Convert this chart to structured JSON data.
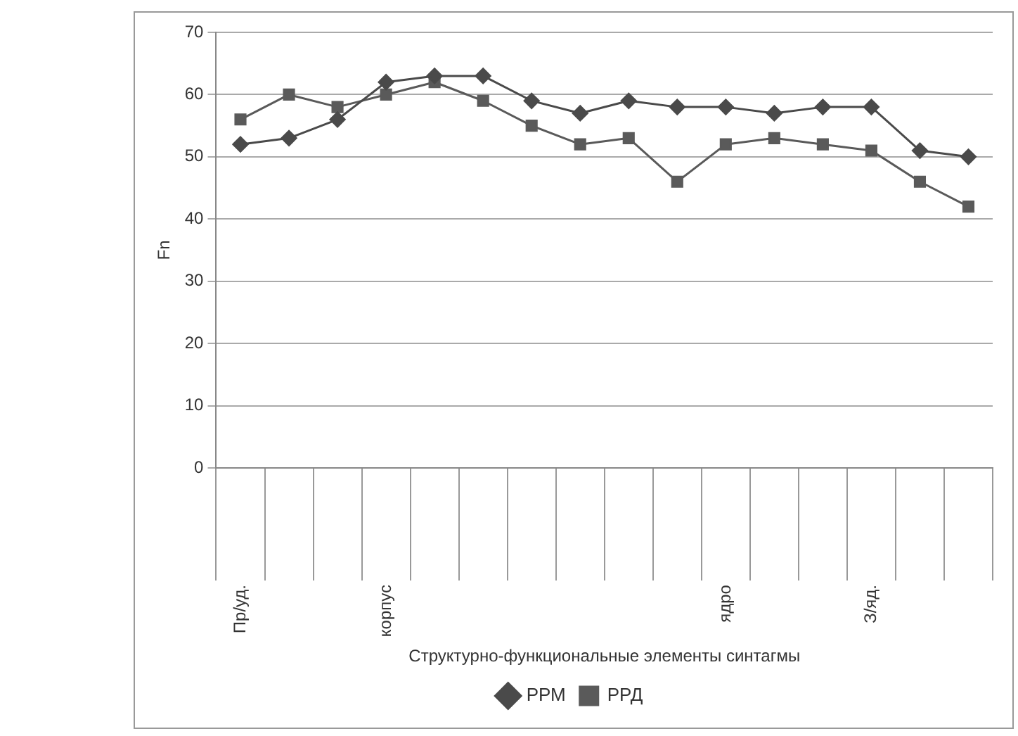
{
  "chart_data": {
    "type": "line",
    "xlabel": "Структурно-функциональные элементы синтагмы",
    "ylabel": "Fn",
    "categories": [
      "Пр/уд.",
      null,
      null,
      "корпус",
      null,
      null,
      null,
      null,
      null,
      null,
      "ядро",
      null,
      null,
      "З/яд.",
      null,
      null
    ],
    "series": [
      {
        "name": "РРМ",
        "color": "#4a4a4a",
        "marker": "diamond",
        "values": [
          52,
          53,
          56,
          62,
          63,
          63,
          59,
          57,
          59,
          58,
          58,
          57,
          58,
          58,
          51,
          50
        ]
      },
      {
        "name": "РРД",
        "color": "#5a5a5a",
        "marker": "square",
        "values": [
          56,
          60,
          58,
          60,
          62,
          59,
          55,
          52,
          53,
          46,
          52,
          53,
          52,
          51,
          46,
          42
        ]
      }
    ],
    "ylim": [
      0,
      70
    ],
    "yticks": [
      0,
      10,
      20,
      30,
      40,
      50,
      60,
      70
    ],
    "grid": "y",
    "legend": "bottom",
    "line_style": "solid"
  }
}
